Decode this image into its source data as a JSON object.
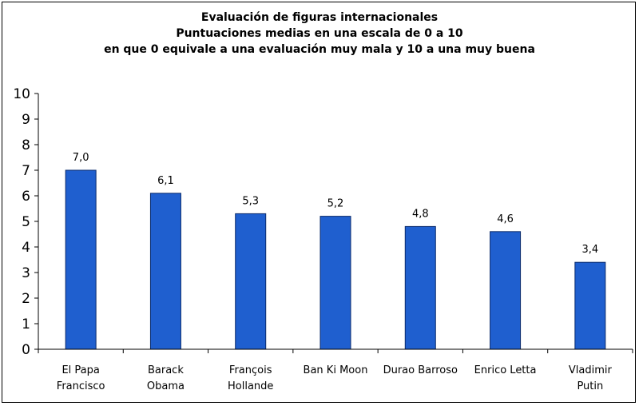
{
  "chart_data": {
    "type": "bar",
    "title_lines": [
      "Evaluación de figuras internacionales",
      "Puntuaciones medias en una escala de 0 a 10",
      "en que 0 equivale a una evaluación muy mala y 10 a una muy buena"
    ],
    "categories": [
      [
        "El Papa",
        "Francisco"
      ],
      [
        "Barack",
        "Obama"
      ],
      [
        "François",
        "Hollande"
      ],
      [
        "Ban Ki Moon"
      ],
      [
        "Durao Barroso"
      ],
      [
        "Enrico Letta"
      ],
      [
        "Vladimir",
        "Putin"
      ]
    ],
    "values": [
      7.0,
      6.1,
      5.3,
      5.2,
      4.8,
      4.6,
      3.4
    ],
    "value_labels": [
      "7,0",
      "6,1",
      "5,3",
      "5,2",
      "4,8",
      "4,6",
      "3,4"
    ],
    "ylim": [
      0,
      10
    ],
    "yticks": [
      "0",
      "1",
      "2",
      "3",
      "4",
      "5",
      "6",
      "7",
      "8",
      "9",
      "10"
    ],
    "bar_color": "#1f5fcf",
    "bar_edge_color": "#0a2a6b",
    "grid": false,
    "legend": "none"
  }
}
